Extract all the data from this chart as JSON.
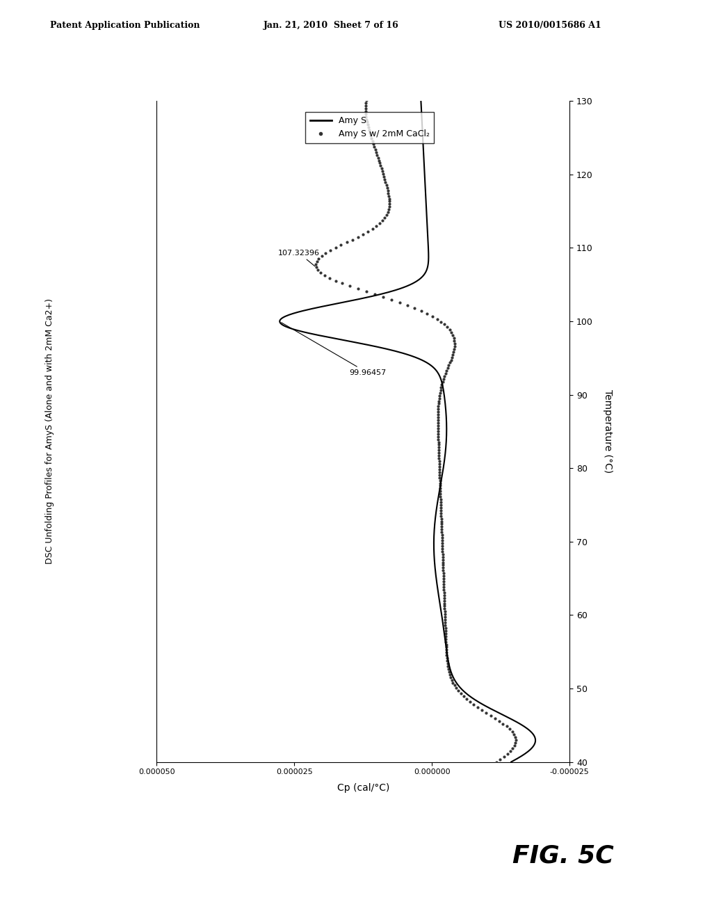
{
  "title": "DSC Unfolding Profiles for AmyS (Alone and with 2mM Ca2+)",
  "xlabel_cp": "Cp (cal/°C)",
  "ylabel_temp": "Temperature (°C)",
  "temp_range": [
    40,
    130
  ],
  "cp_xlim": [
    5e-05,
    -2.5e-05
  ],
  "cp_xticks": [
    5e-05,
    2.5e-05,
    0.0,
    -2.5e-05
  ],
  "cp_xtick_labels": [
    "0.000050",
    "0.000025",
    "0.000000",
    "-0.000025"
  ],
  "temp_yticks": [
    40,
    50,
    60,
    70,
    80,
    90,
    100,
    110,
    120,
    130
  ],
  "peak1_temp": 99.96457,
  "peak1_label": "99.96457",
  "peak2_temp": 107.32396,
  "peak2_label": "107.32396",
  "legend_entries": [
    "Amy S",
    "Amy S w/ 2mM CaCl₂"
  ],
  "background_color": "#ffffff",
  "fig_label": "FIG. 5C",
  "header_left": "Patent Application Publication",
  "header_mid": "Jan. 21, 2010  Sheet 7 of 16",
  "header_right": "US 2010/0015686 A1"
}
